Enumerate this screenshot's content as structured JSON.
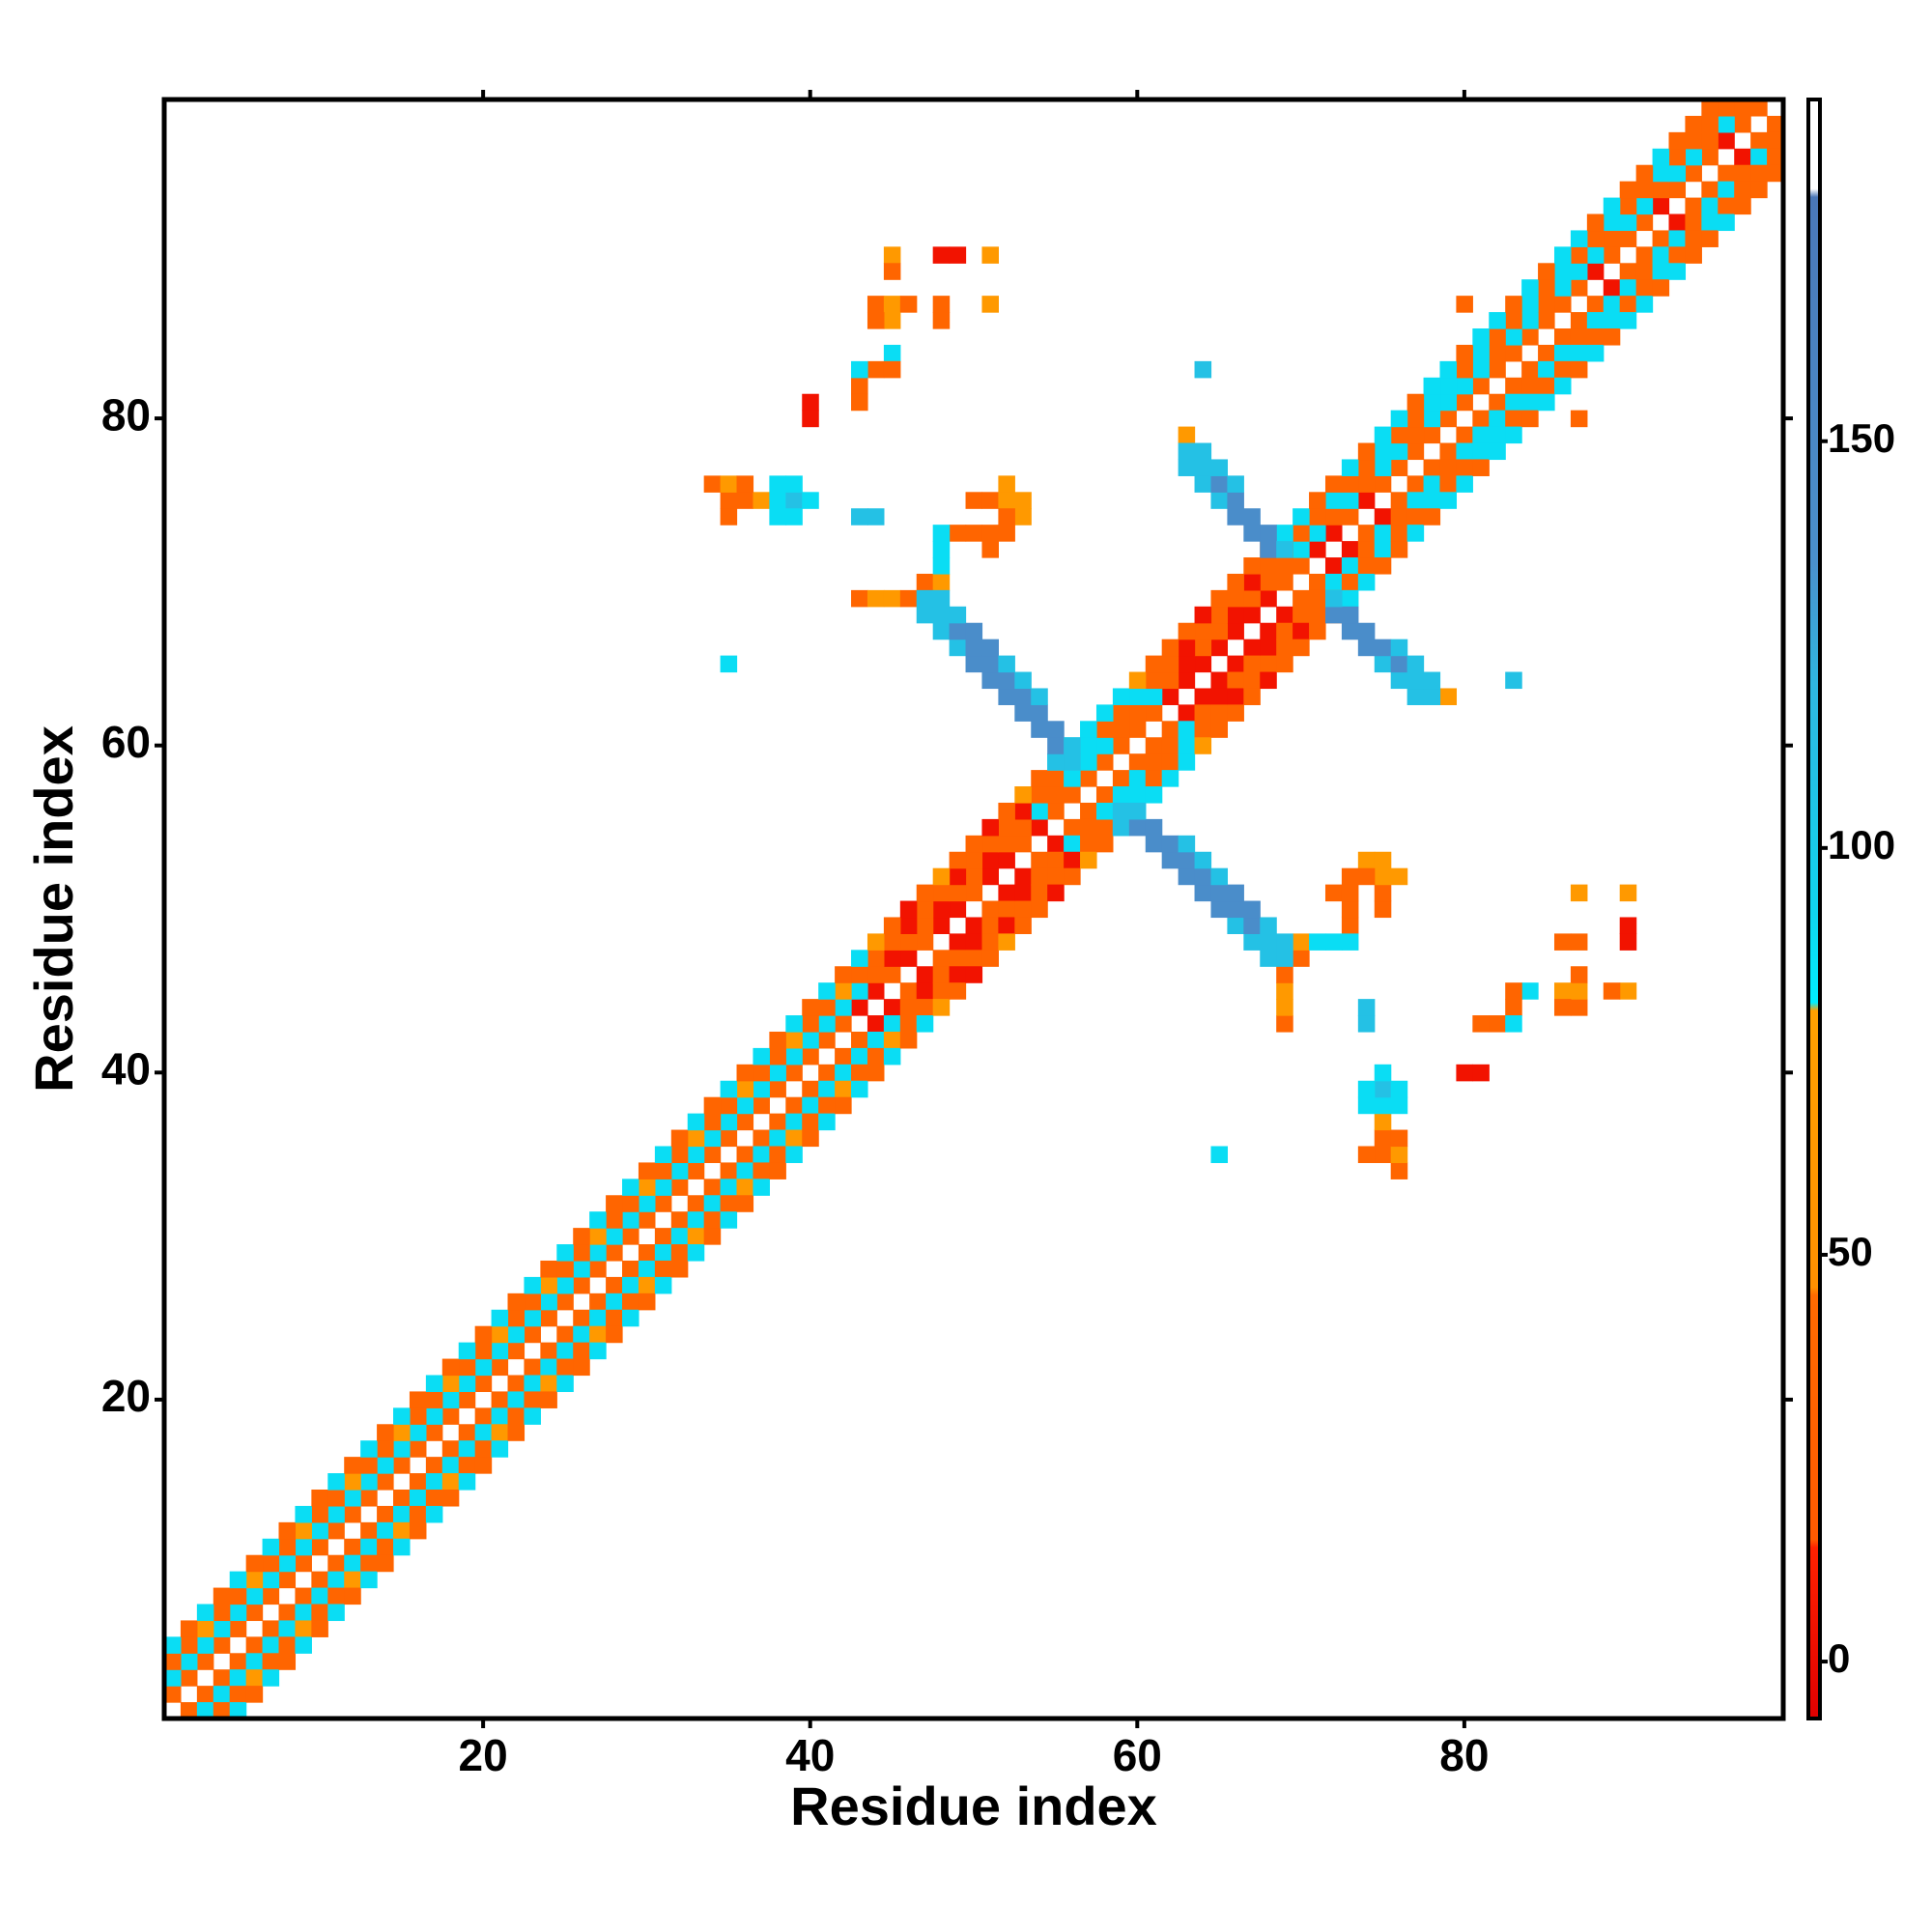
{
  "chart_data": {
    "type": "heatmap",
    "xlabel": "Residue index",
    "ylabel": "Residue index",
    "xlim": [
      0.5,
      99.5
    ],
    "ylim": [
      0.5,
      99.5
    ],
    "xticks": [
      20,
      40,
      60,
      80
    ],
    "yticks": [
      20,
      40,
      60,
      80
    ],
    "symmetric": true,
    "clim": [
      -7,
      192
    ],
    "cticks": [
      0,
      50,
      100,
      150
    ],
    "colorscale": [
      [
        -7,
        "#e00000"
      ],
      [
        14,
        "#ff2200"
      ],
      [
        15,
        "#ff5a00"
      ],
      [
        45,
        "#ff6a00"
      ],
      [
        46,
        "#ff9000"
      ],
      [
        80,
        "#ffa000"
      ],
      [
        81,
        "#00eeff"
      ],
      [
        92,
        "#10d4ee"
      ],
      [
        120,
        "#2fb6e0"
      ],
      [
        135,
        "#4a90cc"
      ],
      [
        180,
        "#4a78b8"
      ],
      [
        181,
        "#ffffff"
      ],
      [
        192,
        "#ffffff"
      ]
    ],
    "diagonal_bands": [
      {
        "offset": 1,
        "values": [
          35,
          35,
          35,
          35,
          35,
          35,
          35,
          35,
          35,
          35,
          35,
          35,
          35,
          35,
          35,
          35,
          35,
          35,
          35,
          35,
          35,
          35,
          35,
          35,
          35,
          35,
          35,
          35,
          35,
          35,
          35,
          35,
          35,
          35,
          35,
          35,
          35,
          35,
          35,
          35,
          35,
          35,
          5,
          5,
          35,
          5,
          35,
          5,
          5,
          35,
          5,
          5,
          35,
          5,
          35,
          35,
          35,
          35,
          35,
          35,
          35,
          5,
          5,
          5,
          5,
          5,
          5,
          5,
          35,
          35,
          5,
          5,
          35,
          5,
          35,
          35,
          35,
          35,
          35,
          35,
          35,
          35,
          35,
          35,
          35,
          35,
          35,
          5,
          35,
          35,
          35,
          5,
          35,
          35,
          35,
          5,
          35,
          35
        ]
      },
      {
        "offset": 2,
        "values": [
          88,
          88,
          88,
          88,
          88,
          88,
          88,
          88,
          88,
          88,
          88,
          88,
          88,
          88,
          88,
          88,
          88,
          88,
          88,
          88,
          88,
          88,
          88,
          88,
          88,
          88,
          88,
          88,
          88,
          88,
          88,
          88,
          88,
          88,
          88,
          88,
          88,
          88,
          88,
          88,
          88,
          88,
          88,
          35,
          5,
          35,
          35,
          5,
          35,
          35,
          5,
          35,
          35,
          88,
          35,
          35,
          88,
          88,
          35,
          35,
          88,
          35,
          5,
          35,
          35,
          5,
          35,
          35,
          35,
          88,
          88,
          35,
          88,
          35,
          88,
          88,
          35,
          88,
          88,
          88,
          88,
          35,
          88,
          88,
          35,
          88,
          88,
          88,
          35,
          88,
          88,
          35,
          88,
          88,
          35,
          88,
          35
        ]
      },
      {
        "offset": 3,
        "values": [
          35,
          35,
          65,
          35,
          35,
          65,
          35,
          35,
          65,
          35,
          35,
          65,
          35,
          35,
          65,
          35,
          35,
          65,
          35,
          35,
          65,
          35,
          35,
          65,
          35,
          35,
          65,
          35,
          35,
          65,
          35,
          35,
          65,
          35,
          35,
          65,
          35,
          35,
          65,
          35,
          35,
          65,
          35,
          35,
          35,
          5,
          35,
          35,
          5,
          35,
          35,
          35,
          5,
          35,
          35,
          88,
          88,
          35,
          35,
          88,
          35,
          35,
          5,
          35,
          35,
          35,
          5,
          35,
          35,
          35,
          35,
          88,
          35,
          35,
          88,
          35,
          35,
          88,
          88,
          35,
          88,
          35,
          35,
          88,
          35,
          88,
          35,
          35,
          88,
          35,
          35,
          88,
          35,
          35,
          35,
          35
        ]
      },
      {
        "offset": 4,
        "values": [
          88,
          35,
          88,
          35,
          88,
          35,
          88,
          35,
          88,
          35,
          88,
          35,
          88,
          35,
          88,
          35,
          88,
          35,
          88,
          35,
          88,
          35,
          88,
          35,
          88,
          35,
          88,
          35,
          88,
          35,
          88,
          35,
          88,
          35,
          88,
          35,
          88,
          35,
          88,
          35,
          88,
          35,
          88,
          65,
          35,
          5,
          35,
          65,
          35,
          35,
          5,
          35,
          65,
          35,
          88,
          88,
          88,
          88,
          88,
          65,
          35,
          35,
          35,
          5,
          35,
          35,
          35,
          35,
          88,
          88,
          35,
          35,
          88,
          35,
          88,
          88,
          35,
          88,
          88,
          35,
          88,
          88,
          35,
          88,
          35,
          88,
          88,
          35,
          88,
          35,
          35,
          88,
          35,
          35,
          35
        ]
      }
    ],
    "cells": [
      [
        45,
        90,
        65
      ],
      [
        45,
        89,
        35
      ],
      [
        48,
        90,
        5
      ],
      [
        49,
        90,
        5
      ],
      [
        51,
        90,
        65
      ],
      [
        51,
        87,
        65
      ],
      [
        44,
        87,
        35
      ],
      [
        45,
        87,
        65
      ],
      [
        46,
        87,
        35
      ],
      [
        48,
        87,
        35
      ],
      [
        45,
        84,
        88
      ],
      [
        44,
        83,
        35
      ],
      [
        45,
        83,
        35
      ],
      [
        40,
        81,
        5
      ],
      [
        35,
        75,
        35
      ],
      [
        36,
        75,
        35
      ],
      [
        37,
        75,
        65
      ],
      [
        38,
        75,
        88
      ],
      [
        39,
        75,
        110
      ],
      [
        40,
        75,
        88
      ],
      [
        35,
        74,
        35
      ],
      [
        38,
        74,
        88
      ],
      [
        39,
        74,
        88
      ],
      [
        38,
        76,
        88
      ],
      [
        39,
        76,
        88
      ],
      [
        34,
        76,
        35
      ],
      [
        35,
        76,
        65
      ],
      [
        36,
        76,
        35
      ],
      [
        44,
        74,
        110
      ],
      [
        35,
        65,
        88
      ],
      [
        50,
        75,
        35
      ],
      [
        51,
        75,
        35
      ],
      [
        52,
        76,
        65
      ],
      [
        52,
        75,
        65
      ],
      [
        49,
        73,
        35
      ],
      [
        50,
        73,
        35
      ],
      [
        48,
        73,
        88
      ],
      [
        48,
        72,
        88
      ],
      [
        43,
        69,
        35
      ],
      [
        44,
        69,
        65
      ],
      [
        45,
        69,
        65
      ],
      [
        46,
        69,
        35
      ],
      [
        47,
        70,
        35
      ],
      [
        48,
        70,
        65
      ],
      [
        48,
        71,
        88
      ],
      [
        64,
        83,
        110
      ],
      [
        63,
        79,
        65
      ],
      [
        80,
        87,
        35
      ],
      [
        53,
        74,
        65
      ],
      [
        53,
        75,
        65
      ],
      [
        52,
        73,
        35
      ],
      [
        52,
        74,
        35
      ],
      [
        51,
        72,
        35
      ],
      [
        51,
        73,
        35
      ],
      [
        48,
        86,
        35
      ],
      [
        45,
        86,
        65
      ],
      [
        44,
        86,
        35
      ],
      [
        43,
        82,
        35
      ],
      [
        43,
        81,
        35
      ],
      [
        43,
        83,
        88
      ],
      [
        43,
        74,
        110
      ],
      [
        40,
        80,
        5
      ],
      [
        47,
        68,
        110
      ],
      [
        47,
        69,
        110
      ],
      [
        48,
        67,
        110
      ],
      [
        48,
        68,
        110
      ],
      [
        48,
        69,
        110
      ],
      [
        49,
        66,
        110
      ],
      [
        49,
        67,
        140
      ],
      [
        49,
        68,
        110
      ],
      [
        50,
        65,
        140
      ],
      [
        50,
        66,
        140
      ],
      [
        50,
        67,
        140
      ],
      [
        51,
        64,
        140
      ],
      [
        51,
        65,
        140
      ],
      [
        51,
        66,
        140
      ],
      [
        52,
        63,
        140
      ],
      [
        52,
        64,
        140
      ],
      [
        52,
        65,
        110
      ],
      [
        53,
        62,
        140
      ],
      [
        53,
        63,
        140
      ],
      [
        53,
        64,
        110
      ],
      [
        54,
        61,
        140
      ],
      [
        54,
        62,
        140
      ],
      [
        54,
        63,
        110
      ],
      [
        55,
        59,
        110
      ],
      [
        55,
        60,
        140
      ],
      [
        55,
        61,
        140
      ],
      [
        56,
        58,
        88
      ],
      [
        56,
        59,
        110
      ],
      [
        56,
        60,
        110
      ],
      [
        63,
        77,
        110
      ],
      [
        63,
        78,
        110
      ],
      [
        64,
        76,
        110
      ],
      [
        64,
        77,
        110
      ],
      [
        64,
        78,
        110
      ],
      [
        65,
        75,
        110
      ],
      [
        65,
        76,
        140
      ],
      [
        65,
        77,
        110
      ],
      [
        66,
        74,
        140
      ],
      [
        66,
        75,
        140
      ],
      [
        66,
        76,
        110
      ],
      [
        67,
        73,
        140
      ],
      [
        67,
        74,
        140
      ],
      [
        68,
        72,
        140
      ],
      [
        68,
        73,
        140
      ],
      [
        69,
        72,
        110
      ]
    ]
  }
}
